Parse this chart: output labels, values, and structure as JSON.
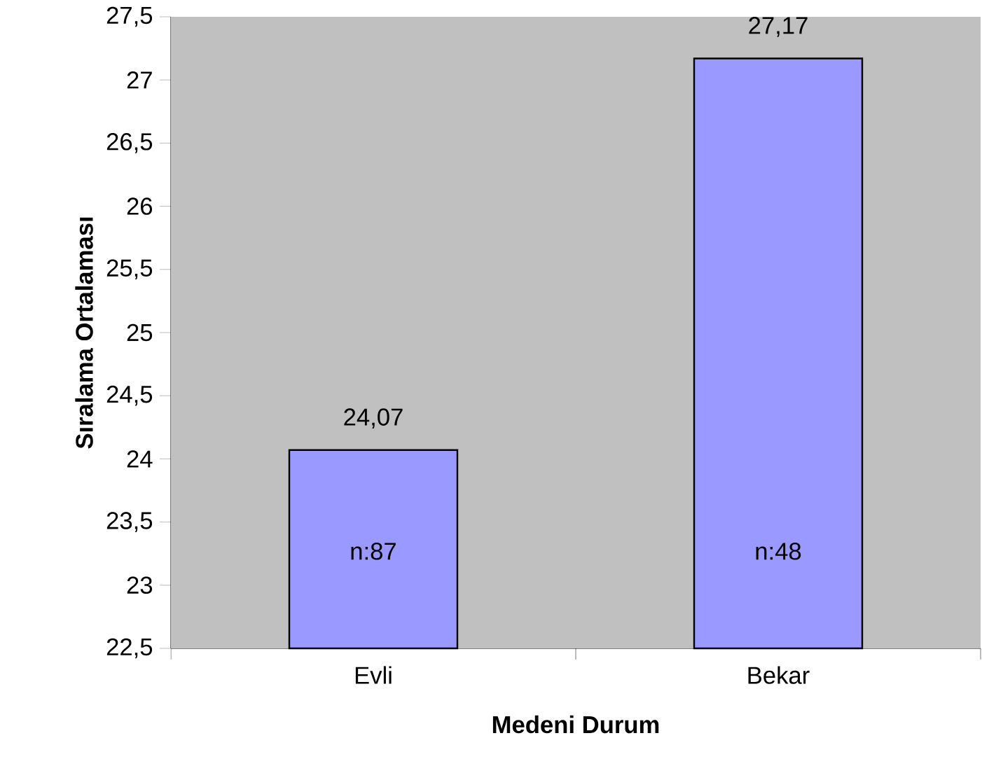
{
  "chart_data": {
    "type": "bar",
    "xlabel": "Medeni Durum",
    "ylabel": "Sıralama Ortalaması",
    "categories": [
      "Evli",
      "Bekar"
    ],
    "values": [
      24.07,
      27.17
    ],
    "value_labels": [
      "24,07",
      "27,17"
    ],
    "color": "#9999ff",
    "ylim": [
      22.5,
      27.5
    ],
    "yticks": [
      {
        "value": 22.5,
        "label": "22,5"
      },
      23,
      {
        "value": 23.5,
        "label": "23,5"
      },
      24,
      {
        "value": 24.5,
        "label": "24,5"
      },
      25,
      {
        "value": 25.5,
        "label": "25,5"
      },
      26,
      {
        "value": 26.5,
        "label": "26,5"
      },
      27,
      {
        "value": 27.5,
        "label": "27,5"
      }
    ],
    "annotations": [
      "n:87",
      "n:48"
    ]
  }
}
